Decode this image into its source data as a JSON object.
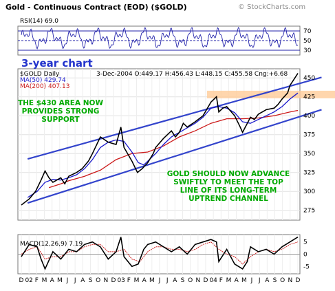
{
  "header": {
    "title": "Gold - Continuous Contract (EOD) ($GOLD)",
    "brand": "© StockCharts.com"
  },
  "colors": {
    "price": "#000000",
    "ma50": "#1a1acc",
    "ma200": "#cc1a1a",
    "channel": "#3344cc",
    "support_zone": "#ffcc99",
    "annotation": "#00aa00",
    "rsi": "#2222aa"
  },
  "chart_data": [
    {
      "type": "line",
      "panel": "rsi",
      "label": "RSI(14) 69.0",
      "value": 69.0,
      "yticks": [
        70,
        50,
        30
      ],
      "ylim": [
        20,
        80
      ],
      "reference_lines": [
        70,
        50,
        30
      ],
      "badge": "3-year chart"
    },
    {
      "type": "line",
      "panel": "price",
      "symbol_label": "$GOLD Daily",
      "quote": "3-Dec-2004   O:449.17  H:456.43  L:448.15  C:455.58  Cng:+6.68",
      "ma50_label": "MA(50) 429.74",
      "ma200_label": "MA(200) 407.13",
      "yticks": [
        450,
        425,
        400,
        375,
        350,
        325,
        300,
        275
      ],
      "ylim": [
        262,
        462
      ],
      "x_month_index_range": [
        0,
        35
      ],
      "support_zone": [
        423,
        433
      ],
      "close_series": [
        [
          0,
          282
        ],
        [
          1,
          290
        ],
        [
          1.8,
          300
        ],
        [
          2.5,
          315
        ],
        [
          3,
          327
        ],
        [
          3.5,
          318
        ],
        [
          4,
          312
        ],
        [
          5,
          318
        ],
        [
          5.5,
          310
        ],
        [
          6,
          320
        ],
        [
          7,
          325
        ],
        [
          7.7,
          330
        ],
        [
          8.5,
          340
        ],
        [
          9,
          350
        ],
        [
          10,
          372
        ],
        [
          11,
          365
        ],
        [
          12,
          362
        ],
        [
          12.6,
          385
        ],
        [
          13,
          358
        ],
        [
          14,
          340
        ],
        [
          14.7,
          325
        ],
        [
          15.3,
          330
        ],
        [
          16,
          338
        ],
        [
          16.7,
          350
        ],
        [
          17,
          358
        ],
        [
          18,
          370
        ],
        [
          19,
          380
        ],
        [
          19.5,
          372
        ],
        [
          20,
          378
        ],
        [
          20.5,
          390
        ],
        [
          21,
          385
        ],
        [
          22,
          392
        ],
        [
          23,
          400
        ],
        [
          24,
          418
        ],
        [
          24.7,
          425
        ],
        [
          25,
          405
        ],
        [
          25.5,
          410
        ],
        [
          26,
          412
        ],
        [
          27,
          400
        ],
        [
          27.7,
          385
        ],
        [
          28,
          378
        ],
        [
          28.6,
          390
        ],
        [
          29,
          398
        ],
        [
          29.5,
          395
        ],
        [
          30,
          402
        ],
        [
          31,
          408
        ],
        [
          32,
          410
        ],
        [
          32.5,
          415
        ],
        [
          33,
          422
        ],
        [
          33.7,
          430
        ],
        [
          34,
          440
        ],
        [
          34.5,
          448
        ],
        [
          35,
          456
        ]
      ],
      "ma50_series": [
        [
          0.8,
          292
        ],
        [
          2,
          300
        ],
        [
          3,
          312
        ],
        [
          4,
          316
        ],
        [
          5,
          315
        ],
        [
          6,
          318
        ],
        [
          7,
          322
        ],
        [
          8,
          330
        ],
        [
          9,
          342
        ],
        [
          10,
          358
        ],
        [
          11,
          365
        ],
        [
          12,
          368
        ],
        [
          13,
          366
        ],
        [
          14,
          352
        ],
        [
          14.8,
          338
        ],
        [
          15.5,
          335
        ],
        [
          16,
          340
        ],
        [
          17,
          350
        ],
        [
          18,
          362
        ],
        [
          19,
          372
        ],
        [
          20,
          378
        ],
        [
          21,
          384
        ],
        [
          22,
          390
        ],
        [
          23,
          398
        ],
        [
          24,
          410
        ],
        [
          25,
          412
        ],
        [
          26,
          410
        ],
        [
          27,
          404
        ],
        [
          28,
          392
        ],
        [
          29,
          390
        ],
        [
          30,
          395
        ],
        [
          31,
          400
        ],
        [
          32,
          405
        ],
        [
          33,
          412
        ],
        [
          34,
          422
        ],
        [
          35,
          430
        ]
      ],
      "ma200_series": [
        [
          3.5,
          305
        ],
        [
          5,
          310
        ],
        [
          6,
          314
        ],
        [
          8,
          320
        ],
        [
          10,
          328
        ],
        [
          12,
          342
        ],
        [
          14,
          350
        ],
        [
          16,
          352
        ],
        [
          18,
          360
        ],
        [
          20,
          372
        ],
        [
          22,
          380
        ],
        [
          24,
          390
        ],
        [
          26,
          396
        ],
        [
          28,
          396
        ],
        [
          30,
          397
        ],
        [
          32,
          400
        ],
        [
          34,
          405
        ],
        [
          35,
          407
        ]
      ],
      "channel_upper": [
        [
          5,
          355
        ],
        [
          35,
          442
        ]
      ],
      "channel_lower": [
        [
          0,
          282
        ],
        [
          35,
          398
        ]
      ],
      "annotations": [
        "THE $430 AREA NOW",
        "PROVIDES STRONG",
        "SUPPORT",
        "GOLD SHOULD NOW ADVANCE",
        "SWIFTLY TO MEET THE TOP",
        "LINE OF ITS LONG-TERM",
        "UPTREND CHANNEL"
      ]
    },
    {
      "type": "line",
      "panel": "macd",
      "label": "MACD(12,26,9) 7.19",
      "value": 7.19,
      "yticks": [
        5,
        0,
        -5
      ],
      "ylim": [
        -8,
        8
      ],
      "macd_series": [
        [
          0,
          -1
        ],
        [
          1,
          4
        ],
        [
          2,
          3
        ],
        [
          2.5,
          -2
        ],
        [
          3,
          -6
        ],
        [
          4,
          1
        ],
        [
          5,
          -2
        ],
        [
          6,
          2
        ],
        [
          7,
          1
        ],
        [
          8,
          4
        ],
        [
          9,
          5
        ],
        [
          10,
          3
        ],
        [
          11,
          -2
        ],
        [
          12,
          1
        ],
        [
          12.6,
          7
        ],
        [
          13,
          -1
        ],
        [
          14,
          -5
        ],
        [
          14.8,
          -4
        ],
        [
          15.5,
          2
        ],
        [
          16,
          4
        ],
        [
          17,
          5
        ],
        [
          18,
          3
        ],
        [
          19,
          1
        ],
        [
          20,
          3
        ],
        [
          21,
          0
        ],
        [
          22,
          4
        ],
        [
          23,
          5
        ],
        [
          24,
          6
        ],
        [
          24.7,
          5
        ],
        [
          25,
          -3
        ],
        [
          26,
          2
        ],
        [
          27,
          -4
        ],
        [
          28,
          -6
        ],
        [
          28.6,
          -3
        ],
        [
          29,
          3
        ],
        [
          30,
          1
        ],
        [
          31,
          2
        ],
        [
          32,
          0
        ],
        [
          33,
          3
        ],
        [
          34,
          5
        ],
        [
          35,
          7
        ]
      ],
      "signal_series": [
        [
          0,
          0
        ],
        [
          1,
          2
        ],
        [
          2,
          3
        ],
        [
          3,
          -2
        ],
        [
          4,
          -1
        ],
        [
          5,
          -1
        ],
        [
          6,
          1
        ],
        [
          7,
          1
        ],
        [
          8,
          3
        ],
        [
          9,
          4
        ],
        [
          10,
          4
        ],
        [
          11,
          1
        ],
        [
          12,
          1
        ],
        [
          13,
          2
        ],
        [
          14,
          -2
        ],
        [
          15,
          -3
        ],
        [
          16,
          1
        ],
        [
          17,
          3
        ],
        [
          18,
          3
        ],
        [
          19,
          2
        ],
        [
          20,
          2
        ],
        [
          21,
          1
        ],
        [
          22,
          2
        ],
        [
          23,
          4
        ],
        [
          24,
          5
        ],
        [
          25,
          2
        ],
        [
          26,
          0
        ],
        [
          27,
          -1
        ],
        [
          28,
          -4
        ],
        [
          29,
          -1
        ],
        [
          30,
          1
        ],
        [
          31,
          2
        ],
        [
          32,
          1
        ],
        [
          33,
          2
        ],
        [
          34,
          4
        ],
        [
          35,
          5
        ]
      ]
    }
  ],
  "x_axis": {
    "labels": [
      "D",
      "02",
      "F",
      "M",
      "A",
      "M",
      "J",
      "J",
      "A",
      "S",
      "O",
      "N",
      "D",
      "03",
      "F",
      "M",
      "A",
      "M",
      "J",
      "J",
      "A",
      "S",
      "O",
      "N",
      "D",
      "04",
      "F",
      "M",
      "A",
      "M",
      "J",
      "J",
      "A",
      "S",
      "O",
      "N",
      "D"
    ]
  }
}
